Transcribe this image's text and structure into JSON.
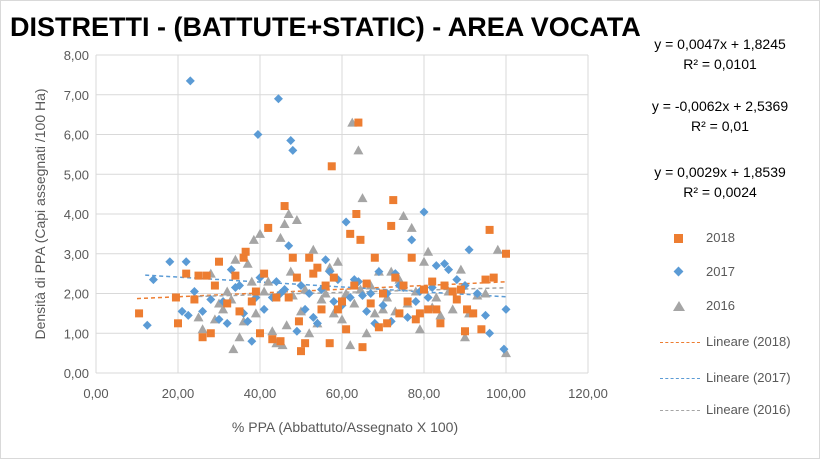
{
  "chart_data": {
    "type": "scatter",
    "title": "DISTRETTI - (BATTUTE+STATIC) - AREA VOCATA",
    "xlabel": "% PPA (Abbattuto/Assegnato X 100)",
    "ylabel": "Densità di PPA (Capi assegnati /100 Ha)",
    "xlim": [
      0,
      120
    ],
    "ylim": [
      0,
      8
    ],
    "xticks": [
      "0,00",
      "20,00",
      "40,00",
      "60,00",
      "80,00",
      "100,00",
      "120,00"
    ],
    "yticks": [
      "0,00",
      "1,00",
      "2,00",
      "3,00",
      "4,00",
      "5,00",
      "6,00",
      "7,00",
      "8,00"
    ],
    "grid": true,
    "legend_position": "right",
    "series": [
      {
        "name": "2018",
        "color": "#ED7D31",
        "marker": "square",
        "points": [
          [
            10.5,
            1.5
          ],
          [
            19.5,
            1.9
          ],
          [
            20,
            1.25
          ],
          [
            22,
            2.5
          ],
          [
            24,
            1.85
          ],
          [
            25,
            2.45
          ],
          [
            26,
            0.9
          ],
          [
            27,
            2.45
          ],
          [
            28,
            1.0
          ],
          [
            29,
            2.2
          ],
          [
            30,
            2.8
          ],
          [
            32,
            1.75
          ],
          [
            34,
            2.45
          ],
          [
            35,
            1.55
          ],
          [
            36,
            2.9
          ],
          [
            36.5,
            3.05
          ],
          [
            38,
            1.8
          ],
          [
            39,
            2.05
          ],
          [
            40,
            1.0
          ],
          [
            41,
            2.5
          ],
          [
            42,
            3.65
          ],
          [
            43,
            0.85
          ],
          [
            44,
            1.9
          ],
          [
            45,
            0.8
          ],
          [
            46,
            4.2
          ],
          [
            47,
            1.9
          ],
          [
            48,
            2.9
          ],
          [
            49,
            2.4
          ],
          [
            49.5,
            1.3
          ],
          [
            50,
            0.55
          ],
          [
            51,
            0.75
          ],
          [
            52,
            2.9
          ],
          [
            53,
            2.5
          ],
          [
            54,
            2.65
          ],
          [
            55,
            1.6
          ],
          [
            56,
            2.2
          ],
          [
            57,
            0.75
          ],
          [
            57.5,
            5.2
          ],
          [
            58,
            2.4
          ],
          [
            59,
            1.6
          ],
          [
            60,
            1.8
          ],
          [
            61,
            1.1
          ],
          [
            62,
            3.5
          ],
          [
            63,
            2.2
          ],
          [
            63.5,
            4.0
          ],
          [
            64,
            6.3
          ],
          [
            64.5,
            3.35
          ],
          [
            65,
            0.65
          ],
          [
            66,
            2.25
          ],
          [
            67,
            1.75
          ],
          [
            68,
            2.9
          ],
          [
            69,
            1.15
          ],
          [
            70,
            2.0
          ],
          [
            71,
            1.25
          ],
          [
            72,
            3.7
          ],
          [
            72.5,
            4.35
          ],
          [
            73,
            2.4
          ],
          [
            74,
            1.5
          ],
          [
            75,
            2.2
          ],
          [
            76,
            1.8
          ],
          [
            77,
            2.9
          ],
          [
            78,
            1.35
          ],
          [
            79,
            1.5
          ],
          [
            80,
            2.1
          ],
          [
            81,
            1.6
          ],
          [
            82,
            2.3
          ],
          [
            83,
            1.6
          ],
          [
            84,
            1.25
          ],
          [
            85,
            2.2
          ],
          [
            87,
            2.05
          ],
          [
            88,
            1.85
          ],
          [
            89,
            2.1
          ],
          [
            90,
            1.05
          ],
          [
            90.5,
            1.6
          ],
          [
            92,
            1.5
          ],
          [
            94,
            1.1
          ],
          [
            95,
            2.35
          ],
          [
            96,
            3.6
          ],
          [
            97,
            2.4
          ],
          [
            100,
            3.0
          ]
        ]
      },
      {
        "name": "2017",
        "color": "#5B9BD5",
        "marker": "diamond",
        "points": [
          [
            12.5,
            1.2
          ],
          [
            14,
            2.35
          ],
          [
            18,
            2.8
          ],
          [
            21,
            1.55
          ],
          [
            22,
            2.8
          ],
          [
            22.5,
            1.45
          ],
          [
            23,
            7.35
          ],
          [
            24,
            2.05
          ],
          [
            26,
            1.55
          ],
          [
            28,
            1.85
          ],
          [
            30,
            1.35
          ],
          [
            31,
            1.8
          ],
          [
            32,
            1.25
          ],
          [
            33,
            2.6
          ],
          [
            34,
            2.15
          ],
          [
            35,
            2.2
          ],
          [
            36,
            1.5
          ],
          [
            37,
            1.3
          ],
          [
            38,
            0.8
          ],
          [
            39,
            1.9
          ],
          [
            39.5,
            6.0
          ],
          [
            40,
            2.4
          ],
          [
            41,
            1.6
          ],
          [
            43,
            1.9
          ],
          [
            44,
            2.3
          ],
          [
            44.5,
            6.9
          ],
          [
            45,
            2.0
          ],
          [
            46,
            2.1
          ],
          [
            47,
            3.2
          ],
          [
            47.5,
            5.85
          ],
          [
            48,
            5.6
          ],
          [
            49,
            1.05
          ],
          [
            50,
            2.2
          ],
          [
            51,
            1.6
          ],
          [
            52,
            2.0
          ],
          [
            53,
            1.4
          ],
          [
            54,
            1.25
          ],
          [
            55,
            2.1
          ],
          [
            56,
            2.85
          ],
          [
            57,
            2.55
          ],
          [
            58,
            1.8
          ],
          [
            59,
            2.35
          ],
          [
            60,
            1.7
          ],
          [
            61,
            3.8
          ],
          [
            62,
            1.9
          ],
          [
            63,
            2.35
          ],
          [
            64,
            2.3
          ],
          [
            65,
            1.95
          ],
          [
            66,
            1.55
          ],
          [
            67,
            2.0
          ],
          [
            68,
            1.25
          ],
          [
            69,
            2.55
          ],
          [
            70,
            1.7
          ],
          [
            71,
            2.0
          ],
          [
            72,
            1.3
          ],
          [
            73,
            2.5
          ],
          [
            74,
            2.2
          ],
          [
            75,
            2.15
          ],
          [
            76,
            1.4
          ],
          [
            77,
            3.35
          ],
          [
            78,
            1.8
          ],
          [
            79,
            2.05
          ],
          [
            80,
            4.05
          ],
          [
            81,
            1.9
          ],
          [
            82,
            2.15
          ],
          [
            83,
            2.7
          ],
          [
            85,
            2.75
          ],
          [
            86,
            2.6
          ],
          [
            88,
            2.35
          ],
          [
            90,
            2.2
          ],
          [
            91,
            3.1
          ],
          [
            93,
            2.0
          ],
          [
            95,
            1.45
          ],
          [
            96,
            1.0
          ],
          [
            99.5,
            0.6
          ],
          [
            100,
            1.6
          ]
        ]
      },
      {
        "name": "2016",
        "color": "#A5A5A5",
        "marker": "triangle",
        "points": [
          [
            25,
            1.4
          ],
          [
            26,
            1.1
          ],
          [
            28,
            2.5
          ],
          [
            29,
            1.35
          ],
          [
            30,
            1.75
          ],
          [
            31,
            1.6
          ],
          [
            32,
            2.05
          ],
          [
            33,
            1.85
          ],
          [
            33.5,
            0.6
          ],
          [
            34,
            2.85
          ],
          [
            35,
            0.9
          ],
          [
            36,
            1.3
          ],
          [
            37,
            2.75
          ],
          [
            38,
            2.3
          ],
          [
            38.5,
            3.35
          ],
          [
            39,
            1.5
          ],
          [
            40,
            3.5
          ],
          [
            41,
            2.05
          ],
          [
            42,
            2.3
          ],
          [
            43,
            1.05
          ],
          [
            44,
            0.75
          ],
          [
            45,
            3.4
          ],
          [
            45.5,
            0.7
          ],
          [
            46,
            3.75
          ],
          [
            46.5,
            1.2
          ],
          [
            47,
            4.0
          ],
          [
            47.5,
            2.55
          ],
          [
            48,
            1.95
          ],
          [
            49,
            3.85
          ],
          [
            50,
            1.55
          ],
          [
            51,
            2.1
          ],
          [
            52,
            1.0
          ],
          [
            53,
            3.1
          ],
          [
            54,
            1.25
          ],
          [
            55,
            1.85
          ],
          [
            56,
            2.0
          ],
          [
            57,
            2.65
          ],
          [
            58,
            1.5
          ],
          [
            59,
            2.8
          ],
          [
            60,
            1.35
          ],
          [
            61,
            2.0
          ],
          [
            62,
            0.7
          ],
          [
            62.5,
            6.3
          ],
          [
            63,
            1.75
          ],
          [
            64,
            5.6
          ],
          [
            64.5,
            2.1
          ],
          [
            65,
            4.4
          ],
          [
            66,
            1.0
          ],
          [
            67,
            2.2
          ],
          [
            68,
            1.5
          ],
          [
            69,
            2.55
          ],
          [
            70,
            1.6
          ],
          [
            71,
            1.9
          ],
          [
            72,
            2.55
          ],
          [
            73,
            1.55
          ],
          [
            74,
            2.35
          ],
          [
            75,
            3.95
          ],
          [
            76,
            1.75
          ],
          [
            77,
            3.65
          ],
          [
            78,
            2.05
          ],
          [
            79,
            1.1
          ],
          [
            80,
            2.8
          ],
          [
            81,
            3.05
          ],
          [
            82,
            1.65
          ],
          [
            83,
            1.9
          ],
          [
            84,
            1.45
          ],
          [
            86,
            2.05
          ],
          [
            87,
            1.6
          ],
          [
            89,
            2.6
          ],
          [
            90,
            0.9
          ],
          [
            91,
            1.5
          ],
          [
            93,
            1.95
          ],
          [
            95,
            2.0
          ],
          [
            98,
            3.1
          ],
          [
            100,
            0.5
          ]
        ]
      }
    ],
    "trendlines": [
      {
        "name": "Lineare (2018)",
        "color": "#ED7D31",
        "slope": 0.0047,
        "intercept": 1.8245,
        "x_range": [
          10,
          100
        ]
      },
      {
        "name": "Lineare (2017)",
        "color": "#5B9BD5",
        "slope": -0.0062,
        "intercept": 2.5369,
        "x_range": [
          12,
          100
        ]
      },
      {
        "name": "Lineare (2016)",
        "color": "#A5A5A5",
        "slope": 0.0029,
        "intercept": 1.8539,
        "x_range": [
          25,
          100
        ]
      }
    ],
    "equations": [
      {
        "equation": "y = 0,0047x + 1,8245",
        "r2": "R² = 0,0101"
      },
      {
        "equation": "y = -0,0062x + 2,5369",
        "r2": "R² = 0,01"
      },
      {
        "equation": "y = 0,0029x + 1,8539",
        "r2": "R² = 0,0024"
      }
    ]
  }
}
